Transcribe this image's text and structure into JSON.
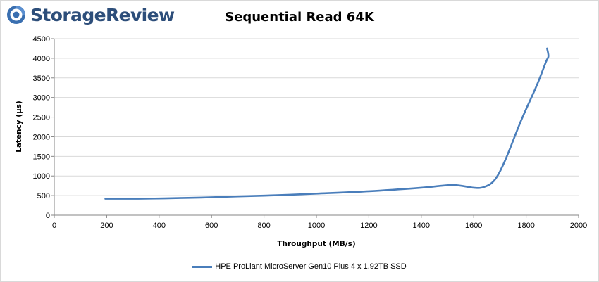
{
  "brand": {
    "name": "StorageReview",
    "colors": {
      "text": "#2d4e7a",
      "icon_outer": "#3a6fb0",
      "icon_inner": "#ffffff"
    },
    "icon": "storagereview-logo-icon"
  },
  "chart_data": {
    "type": "line",
    "title": "Sequential Read 64K",
    "xlabel": "Throughput (MB/s)",
    "ylabel": "Latency (µs)",
    "xlim": [
      0,
      2000
    ],
    "ylim": [
      0,
      4500
    ],
    "xticks": [
      0,
      200,
      400,
      600,
      800,
      1000,
      1200,
      1400,
      1600,
      1800,
      2000
    ],
    "yticks": [
      0,
      500,
      1000,
      1500,
      2000,
      2500,
      3000,
      3500,
      4000,
      4500
    ],
    "grid": true,
    "legend_position": "bottom",
    "series": [
      {
        "name": "HPE ProLiant MicroServer Gen10 Plus 4 x 1.92TB SSD",
        "color": "#4a7ebb",
        "x": [
          195,
          320,
          420,
          560,
          700,
          850,
          1000,
          1200,
          1400,
          1520,
          1600,
          1640,
          1680,
          1720,
          1780,
          1840,
          1875,
          1885,
          1880
        ],
        "y": [
          420,
          420,
          430,
          450,
          480,
          510,
          550,
          610,
          700,
          770,
          700,
          720,
          900,
          1400,
          2400,
          3300,
          3900,
          4050,
          4250
        ]
      }
    ]
  }
}
